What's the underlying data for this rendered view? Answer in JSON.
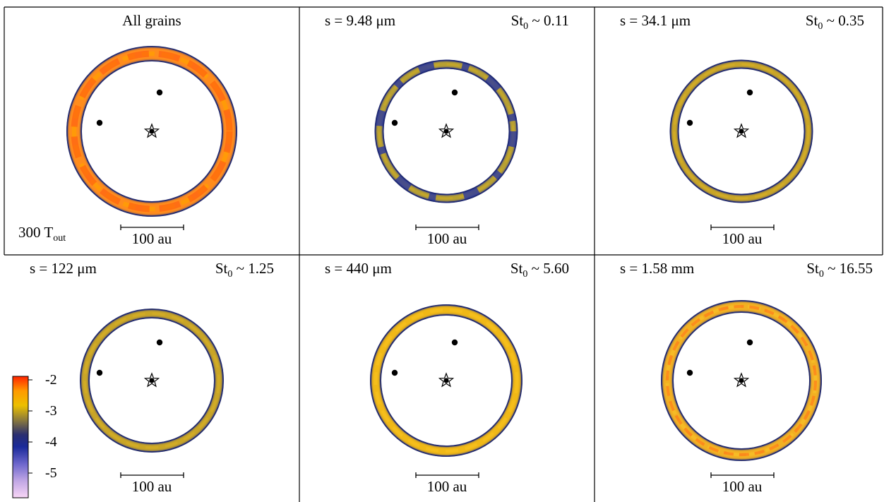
{
  "figure": {
    "panels": [
      {
        "title": "All grains",
        "size_label": "",
        "stokes_label": "",
        "time_label": "300 T",
        "time_sub": "out",
        "scale_label": "100 au",
        "ring_style": "orange"
      },
      {
        "title": "",
        "size_label": "s = 9.48 μm",
        "stokes_label": "St",
        "stokes_sub": "0",
        "stokes_value": " ~ 0.11",
        "scale_label": "100 au",
        "ring_style": "patchy"
      },
      {
        "title": "",
        "size_label": "s = 34.1 μm",
        "stokes_label": "St",
        "stokes_sub": "0",
        "stokes_value": " ~ 0.35",
        "scale_label": "100 au",
        "ring_style": "olive"
      },
      {
        "title": "",
        "size_label": "s = 122 μm",
        "stokes_label": "St",
        "stokes_sub": "0",
        "stokes_value": " ~ 1.25",
        "scale_label": "100 au",
        "ring_style": "olive"
      },
      {
        "title": "",
        "size_label": "s = 440 μm",
        "stokes_label": "St",
        "stokes_sub": "0",
        "stokes_value": " ~ 5.60",
        "scale_label": "100 au",
        "ring_style": "yellow"
      },
      {
        "title": "",
        "size_label": "s = 1.58 mm",
        "stokes_label": "St",
        "stokes_sub": "0",
        "stokes_value": " ~ 16.55",
        "scale_label": "100 au",
        "ring_style": "yellow-orange"
      }
    ],
    "colorbar": {
      "ticks": [
        "-2",
        "-3",
        "-4",
        "-5"
      ],
      "colors": [
        "#ff2b00",
        "#ffa000",
        "#e6b800",
        "#7a6a3a",
        "#1a2a8a",
        "#5a5ac8",
        "#b8a8e0",
        "#f2d0f2"
      ]
    },
    "markers": {
      "star": "star-icon",
      "planet": "planet-dot"
    }
  }
}
